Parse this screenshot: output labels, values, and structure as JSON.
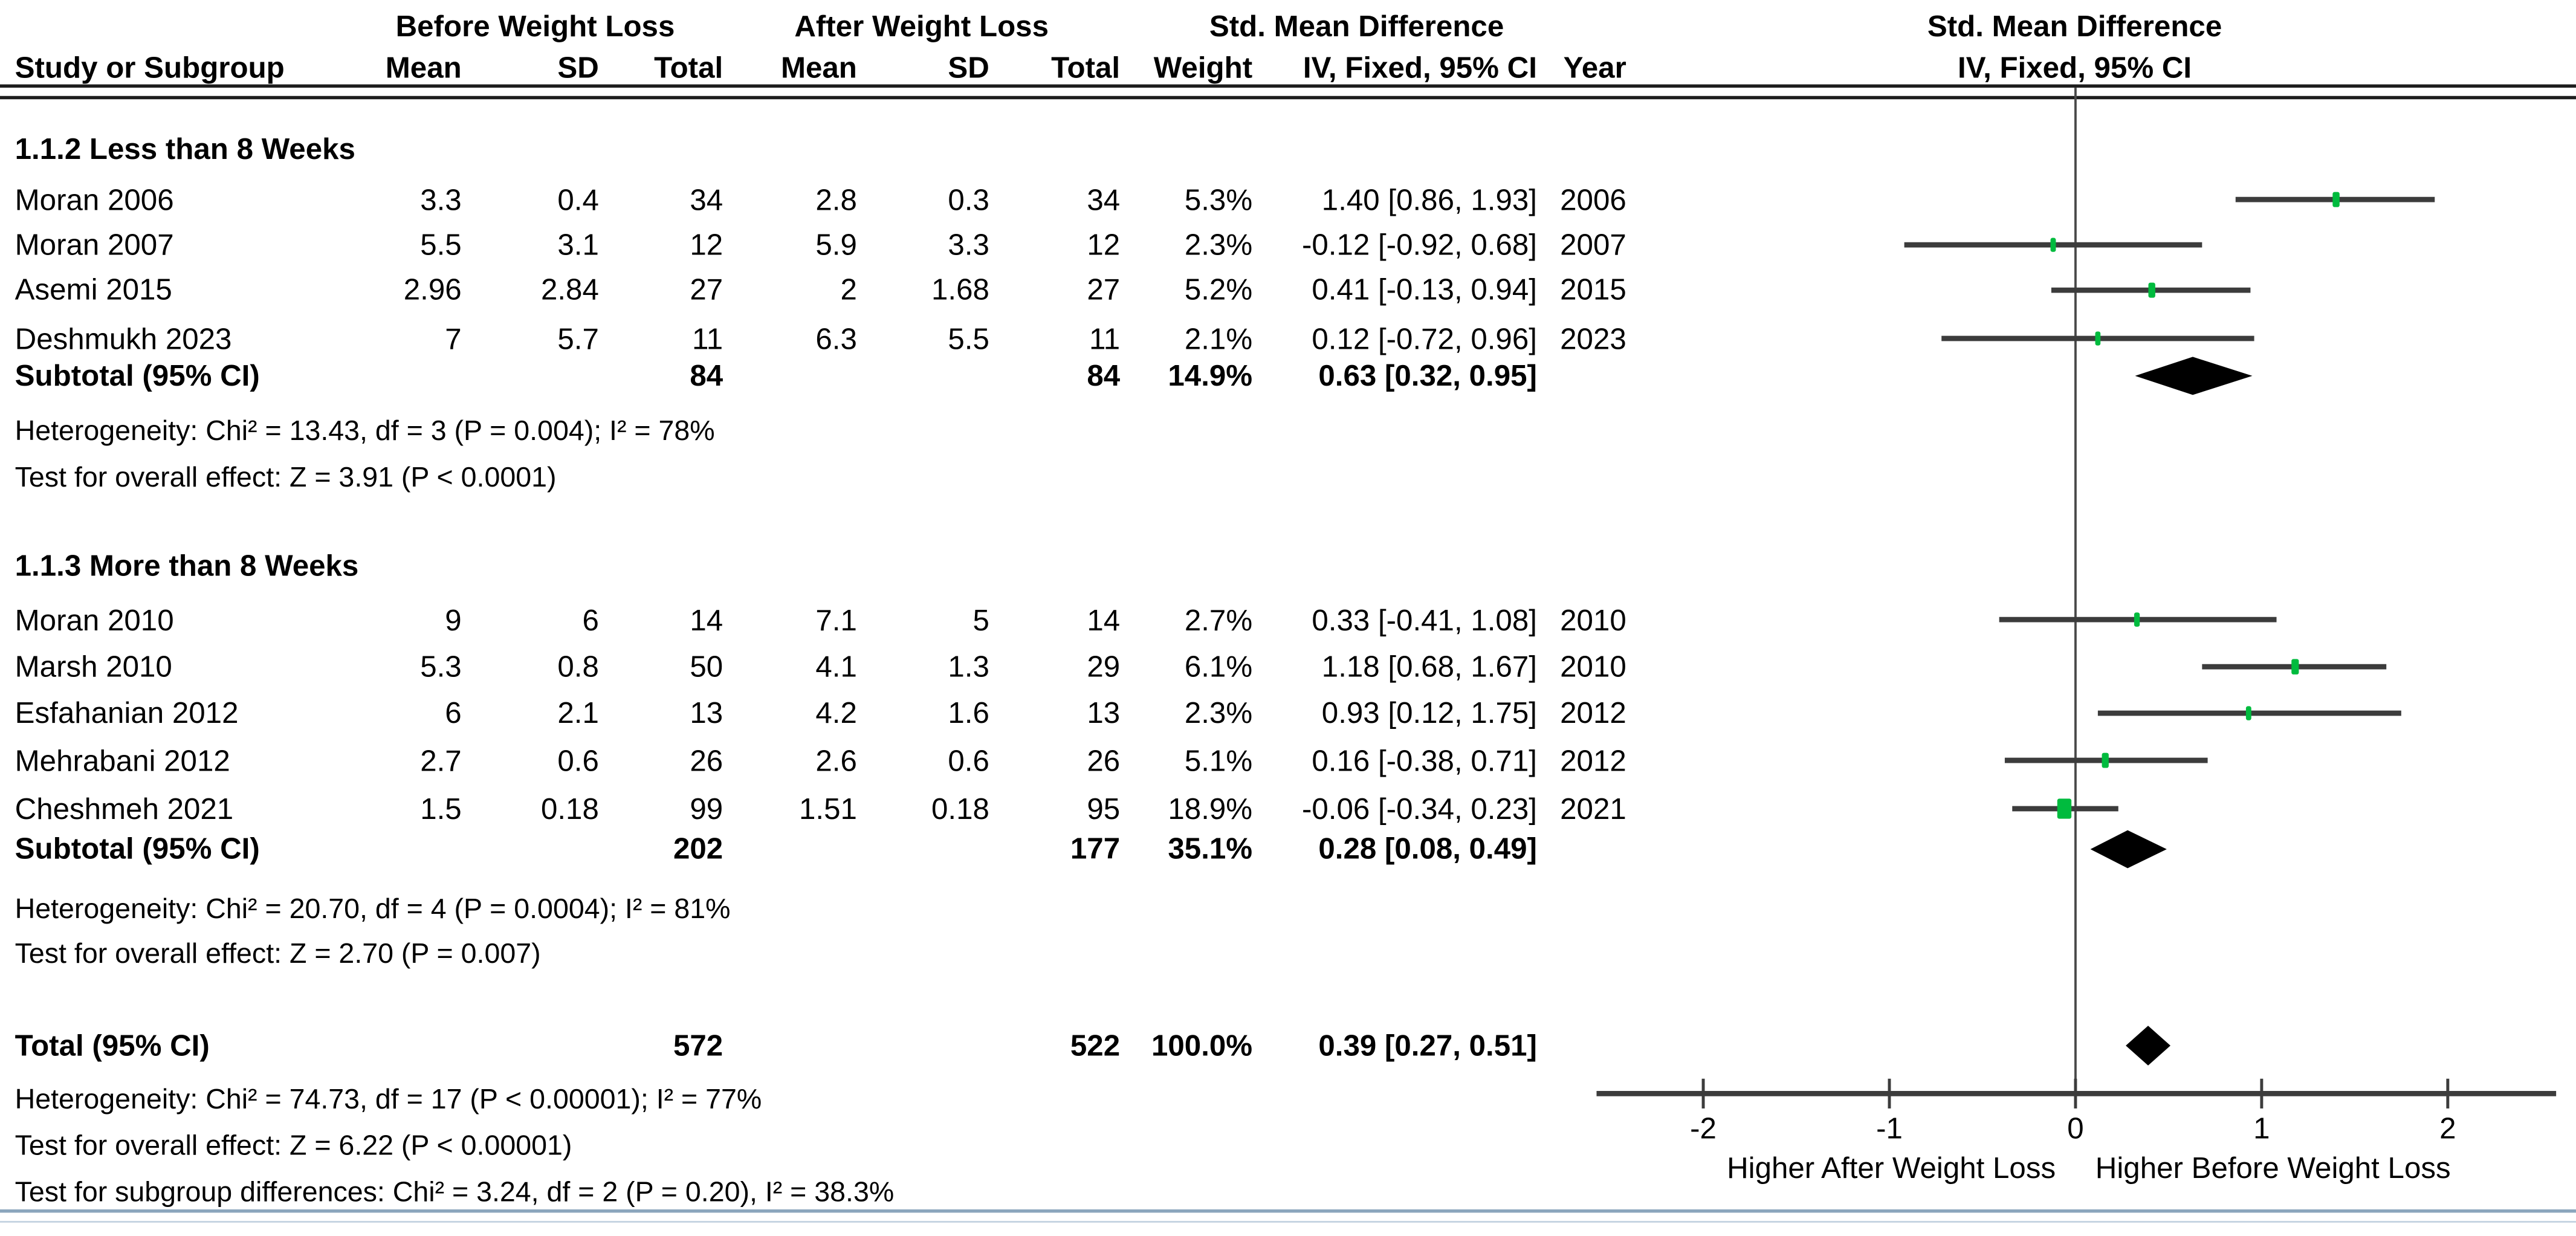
{
  "colors": {
    "marker_green": "#00bb3e",
    "ci_line": "#3c3c3c",
    "diamond": "#000000",
    "zero_line": "#4a4a4a",
    "axis": "#3c3c3c",
    "header_rule": "#1d1d1d",
    "bottom_rule": "#8ba6bd",
    "text": "#000000"
  },
  "chart_data": {
    "type": "forest",
    "effect_measure": "Std. Mean Difference",
    "method": "IV, Fixed, 95% CI",
    "group_headers": {
      "exp": "Before Weight Loss",
      "ctrl": "After Weight Loss",
      "effect": "Std. Mean Difference",
      "plot_title_line1": "Std. Mean Difference",
      "plot_title_line2": "IV, Fixed, 95% CI"
    },
    "columns": [
      "Study or Subgroup",
      "Mean",
      "SD",
      "Total",
      "Mean",
      "SD",
      "Total",
      "Weight",
      "IV, Fixed, 95% CI",
      "Year"
    ],
    "subgroups": [
      {
        "label": "1.1.2 Less than 8 Weeks",
        "studies": [
          {
            "name": "Moran 2006",
            "mean1": "3.3",
            "sd1": "0.4",
            "total1": "34",
            "mean2": "2.8",
            "sd2": "0.3",
            "total2": "34",
            "weight": "5.3%",
            "ci_text": "1.40 [0.86, 1.93]",
            "year": "2006",
            "est": 1.4,
            "lo": 0.86,
            "hi": 1.93,
            "weight_pct": 5.3
          },
          {
            "name": "Moran 2007",
            "mean1": "5.5",
            "sd1": "3.1",
            "total1": "12",
            "mean2": "5.9",
            "sd2": "3.3",
            "total2": "12",
            "weight": "2.3%",
            "ci_text": "-0.12 [-0.92, 0.68]",
            "year": "2007",
            "est": -0.12,
            "lo": -0.92,
            "hi": 0.68,
            "weight_pct": 2.3
          },
          {
            "name": "Asemi 2015",
            "mean1": "2.96",
            "sd1": "2.84",
            "total1": "27",
            "mean2": "2",
            "sd2": "1.68",
            "total2": "27",
            "weight": "5.2%",
            "ci_text": "0.41 [-0.13, 0.94]",
            "year": "2015",
            "est": 0.41,
            "lo": -0.13,
            "hi": 0.94,
            "weight_pct": 5.2
          },
          {
            "name": "Deshmukh 2023",
            "mean1": "7",
            "sd1": "5.7",
            "total1": "11",
            "mean2": "6.3",
            "sd2": "5.5",
            "total2": "11",
            "weight": "2.1%",
            "ci_text": "0.12 [-0.72, 0.96]",
            "year": "2023",
            "est": 0.12,
            "lo": -0.72,
            "hi": 0.96,
            "weight_pct": 2.1
          }
        ],
        "subtotal": {
          "label": "Subtotal (95% CI)",
          "total1": "84",
          "total2": "84",
          "weight": "14.9%",
          "ci_text": "0.63 [0.32, 0.95]",
          "est": 0.63,
          "lo": 0.32,
          "hi": 0.95
        },
        "heterogeneity": "Heterogeneity: Chi² = 13.43, df = 3 (P = 0.004); I² = 78%",
        "overall_effect": "Test for overall effect: Z = 3.91 (P < 0.0001)"
      },
      {
        "label": "1.1.3 More than 8 Weeks",
        "studies": [
          {
            "name": "Moran 2010",
            "mean1": "9",
            "sd1": "6",
            "total1": "14",
            "mean2": "7.1",
            "sd2": "5",
            "total2": "14",
            "weight": "2.7%",
            "ci_text": "0.33 [-0.41, 1.08]",
            "year": "2010",
            "est": 0.33,
            "lo": -0.41,
            "hi": 1.08,
            "weight_pct": 2.7
          },
          {
            "name": "Marsh 2010",
            "mean1": "5.3",
            "sd1": "0.8",
            "total1": "50",
            "mean2": "4.1",
            "sd2": "1.3",
            "total2": "29",
            "weight": "6.1%",
            "ci_text": "1.18 [0.68, 1.67]",
            "year": "2010",
            "est": 1.18,
            "lo": 0.68,
            "hi": 1.67,
            "weight_pct": 6.1
          },
          {
            "name": "Esfahanian 2012",
            "mean1": "6",
            "sd1": "2.1",
            "total1": "13",
            "mean2": "4.2",
            "sd2": "1.6",
            "total2": "13",
            "weight": "2.3%",
            "ci_text": "0.93 [0.12, 1.75]",
            "year": "2012",
            "est": 0.93,
            "lo": 0.12,
            "hi": 1.75,
            "weight_pct": 2.3
          },
          {
            "name": "Mehrabani 2012",
            "mean1": "2.7",
            "sd1": "0.6",
            "total1": "26",
            "mean2": "2.6",
            "sd2": "0.6",
            "total2": "26",
            "weight": "5.1%",
            "ci_text": "0.16 [-0.38, 0.71]",
            "year": "2012",
            "est": 0.16,
            "lo": -0.38,
            "hi": 0.71,
            "weight_pct": 5.1
          },
          {
            "name": "Cheshmeh 2021",
            "mean1": "1.5",
            "sd1": "0.18",
            "total1": "99",
            "mean2": "1.51",
            "sd2": "0.18",
            "total2": "95",
            "weight": "18.9%",
            "ci_text": "-0.06 [-0.34, 0.23]",
            "year": "2021",
            "est": -0.06,
            "lo": -0.34,
            "hi": 0.23,
            "weight_pct": 18.9
          }
        ],
        "subtotal": {
          "label": "Subtotal (95% CI)",
          "total1": "202",
          "total2": "177",
          "weight": "35.1%",
          "ci_text": "0.28 [0.08, 0.49]",
          "est": 0.28,
          "lo": 0.08,
          "hi": 0.49
        },
        "heterogeneity": "Heterogeneity: Chi² = 20.70, df = 4 (P = 0.0004); I² = 81%",
        "overall_effect": "Test for overall effect: Z = 2.70 (P = 0.007)"
      }
    ],
    "total": {
      "label": "Total (95% CI)",
      "total1": "572",
      "total2": "522",
      "weight": "100.0%",
      "ci_text": "0.39 [0.27, 0.51]",
      "est": 0.39,
      "lo": 0.27,
      "hi": 0.51
    },
    "footnotes": {
      "heterogeneity": "Heterogeneity: Chi² = 74.73, df = 17 (P < 0.00001); I² = 77%",
      "overall_effect": "Test for overall effect: Z = 6.22 (P < 0.00001)",
      "subgroup_diff": "Test for subgroup differences: Chi² = 3.24, df = 2 (P = 0.20), I² = 38.3%"
    },
    "axis": {
      "min": -2,
      "max": 2,
      "ticks": [
        "-2",
        "-1",
        "0",
        "1",
        "2"
      ],
      "label_left": "Higher After Weight Loss",
      "label_right": "Higher Before Weight Loss"
    }
  }
}
